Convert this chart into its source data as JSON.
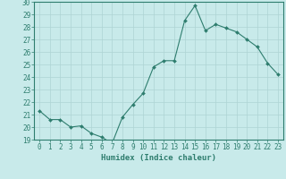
{
  "x": [
    0,
    1,
    2,
    3,
    4,
    5,
    6,
    7,
    8,
    9,
    10,
    11,
    12,
    13,
    14,
    15,
    16,
    17,
    18,
    19,
    20,
    21,
    22,
    23
  ],
  "y": [
    21.3,
    20.6,
    20.6,
    20.0,
    20.1,
    19.5,
    19.2,
    18.7,
    20.8,
    21.8,
    22.7,
    24.8,
    25.3,
    25.3,
    28.5,
    29.7,
    27.7,
    28.2,
    27.9,
    27.6,
    27.0,
    26.4,
    25.1,
    24.2
  ],
  "line_color": "#2e7d6e",
  "marker": "D",
  "marker_size": 2,
  "bg_color": "#c8eaea",
  "grid_color": "#aed4d4",
  "xlabel": "Humidex (Indice chaleur)",
  "ylim": [
    19,
    30
  ],
  "xlim": [
    -0.5,
    23.5
  ],
  "yticks": [
    19,
    20,
    21,
    22,
    23,
    24,
    25,
    26,
    27,
    28,
    29,
    30
  ],
  "xticks": [
    0,
    1,
    2,
    3,
    4,
    5,
    6,
    7,
    8,
    9,
    10,
    11,
    12,
    13,
    14,
    15,
    16,
    17,
    18,
    19,
    20,
    21,
    22,
    23
  ],
  "tick_color": "#2e7d6e",
  "label_color": "#2e7d6e",
  "font_size_xlabel": 6.5,
  "font_size_ticks": 5.5,
  "spine_color": "#2e7d6e"
}
